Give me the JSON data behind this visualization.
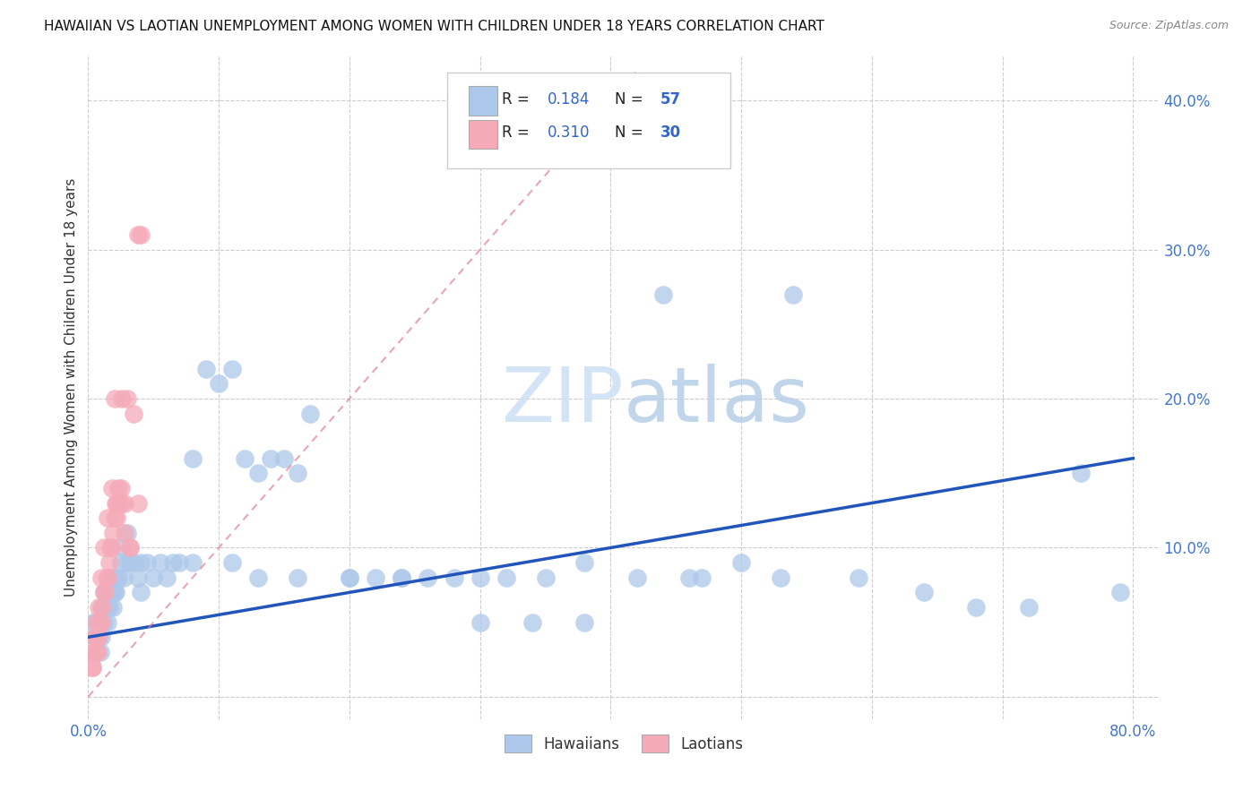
{
  "title": "HAWAIIAN VS LAOTIAN UNEMPLOYMENT AMONG WOMEN WITH CHILDREN UNDER 18 YEARS CORRELATION CHART",
  "source": "Source: ZipAtlas.com",
  "ylabel": "Unemployment Among Women with Children Under 18 years",
  "xlim": [
    0.0,
    0.82
  ],
  "ylim": [
    -0.015,
    0.43
  ],
  "ytick_vals": [
    0.0,
    0.1,
    0.2,
    0.3,
    0.4
  ],
  "xtick_vals": [
    0.0,
    0.1,
    0.2,
    0.3,
    0.4,
    0.5,
    0.6,
    0.7,
    0.8
  ],
  "hawaiian_color": "#adc8ea",
  "laotian_color": "#f5aab8",
  "hawaiian_line_color": "#2255bb",
  "laotian_line_color": "#e08090",
  "R_hawaiian": "0.184",
  "N_hawaiian": "57",
  "R_laotian": "0.310",
  "N_laotian": "30",
  "legend_R_N_color": "#3366cc",
  "legend_text_color": "#222222",
  "tick_color": "#4477cc",
  "background_color": "#ffffff",
  "grid_color": "#cccccc",
  "hawaiian_x": [
    0.003,
    0.005,
    0.006,
    0.007,
    0.008,
    0.009,
    0.01,
    0.011,
    0.012,
    0.013,
    0.014,
    0.015,
    0.016,
    0.017,
    0.018,
    0.019,
    0.02,
    0.021,
    0.022,
    0.023,
    0.025,
    0.027,
    0.03,
    0.032,
    0.035,
    0.038,
    0.04,
    0.045,
    0.05,
    0.055,
    0.06,
    0.065,
    0.07,
    0.08,
    0.09,
    0.1,
    0.11,
    0.12,
    0.13,
    0.14,
    0.15,
    0.16,
    0.17,
    0.2,
    0.22,
    0.24,
    0.26,
    0.28,
    0.3,
    0.32,
    0.35,
    0.38,
    0.44,
    0.46,
    0.5,
    0.54,
    0.79
  ],
  "hawaiian_y": [
    0.05,
    0.04,
    0.03,
    0.05,
    0.04,
    0.03,
    0.04,
    0.06,
    0.05,
    0.06,
    0.06,
    0.07,
    0.06,
    0.07,
    0.07,
    0.06,
    0.07,
    0.07,
    0.08,
    0.08,
    0.09,
    0.08,
    0.09,
    0.09,
    0.09,
    0.08,
    0.09,
    0.09,
    0.08,
    0.09,
    0.08,
    0.09,
    0.09,
    0.16,
    0.22,
    0.21,
    0.22,
    0.16,
    0.15,
    0.16,
    0.16,
    0.15,
    0.19,
    0.08,
    0.08,
    0.08,
    0.08,
    0.08,
    0.08,
    0.08,
    0.08,
    0.09,
    0.27,
    0.08,
    0.09,
    0.27,
    0.07
  ],
  "hawaiian_x2": [
    0.005,
    0.008,
    0.01,
    0.012,
    0.015,
    0.018,
    0.025,
    0.03,
    0.04,
    0.08,
    0.11,
    0.13,
    0.16,
    0.2,
    0.24,
    0.3,
    0.34,
    0.38,
    0.42,
    0.47,
    0.53,
    0.59,
    0.64,
    0.68,
    0.72,
    0.76
  ],
  "hawaiian_y2": [
    0.03,
    0.05,
    0.06,
    0.07,
    0.05,
    0.08,
    0.1,
    0.11,
    0.07,
    0.09,
    0.09,
    0.08,
    0.08,
    0.08,
    0.08,
    0.05,
    0.05,
    0.05,
    0.08,
    0.08,
    0.08,
    0.08,
    0.07,
    0.06,
    0.06,
    0.15
  ],
  "laotian_x": [
    0.003,
    0.004,
    0.005,
    0.006,
    0.007,
    0.008,
    0.009,
    0.01,
    0.011,
    0.012,
    0.013,
    0.014,
    0.015,
    0.016,
    0.017,
    0.018,
    0.019,
    0.02,
    0.021,
    0.022,
    0.023,
    0.024,
    0.025,
    0.026,
    0.028,
    0.03,
    0.032,
    0.035,
    0.038,
    0.04
  ],
  "laotian_y": [
    0.02,
    0.03,
    0.03,
    0.04,
    0.03,
    0.04,
    0.05,
    0.05,
    0.06,
    0.07,
    0.07,
    0.08,
    0.08,
    0.09,
    0.1,
    0.1,
    0.11,
    0.12,
    0.13,
    0.13,
    0.14,
    0.13,
    0.14,
    0.2,
    0.13,
    0.2,
    0.1,
    0.19,
    0.31,
    0.31
  ],
  "laotian_x2": [
    0.003,
    0.005,
    0.006,
    0.008,
    0.01,
    0.012,
    0.015,
    0.018,
    0.02,
    0.022,
    0.025,
    0.028,
    0.032,
    0.038
  ],
  "laotian_y2": [
    0.02,
    0.04,
    0.05,
    0.06,
    0.08,
    0.1,
    0.12,
    0.14,
    0.2,
    0.12,
    0.13,
    0.11,
    0.1,
    0.13
  ],
  "hawaiian_line_x": [
    0.0,
    0.8
  ],
  "hawaiian_line_y": [
    0.04,
    0.16
  ],
  "laotian_line_x": [
    0.0,
    0.42
  ],
  "laotian_line_y": [
    0.0,
    0.42
  ]
}
